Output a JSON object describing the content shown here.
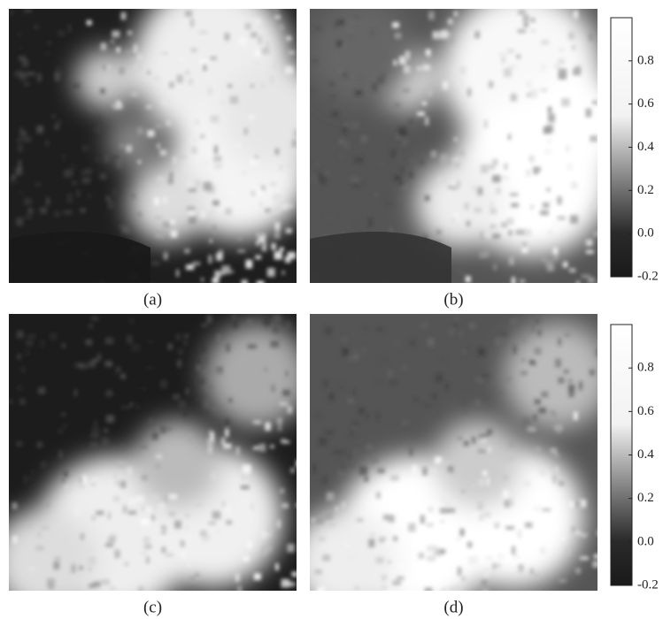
{
  "panels": [
    {
      "caption": "(a)"
    },
    {
      "caption": "(b)"
    },
    {
      "caption": "(c)"
    },
    {
      "caption": "(d)"
    }
  ],
  "colorbars": [
    {
      "range": [
        -0.2,
        1.0
      ],
      "ticks": [
        -0.2,
        {
          "value": 0,
          "label": "0.0"
        },
        0.2,
        0.4,
        0.6,
        0.8
      ]
    },
    {
      "range": [
        -0.2,
        1.0
      ],
      "ticks": [
        -0.2,
        {
          "value": 0,
          "label": "0.0"
        },
        0.2,
        0.4,
        0.6,
        0.8
      ]
    }
  ]
}
